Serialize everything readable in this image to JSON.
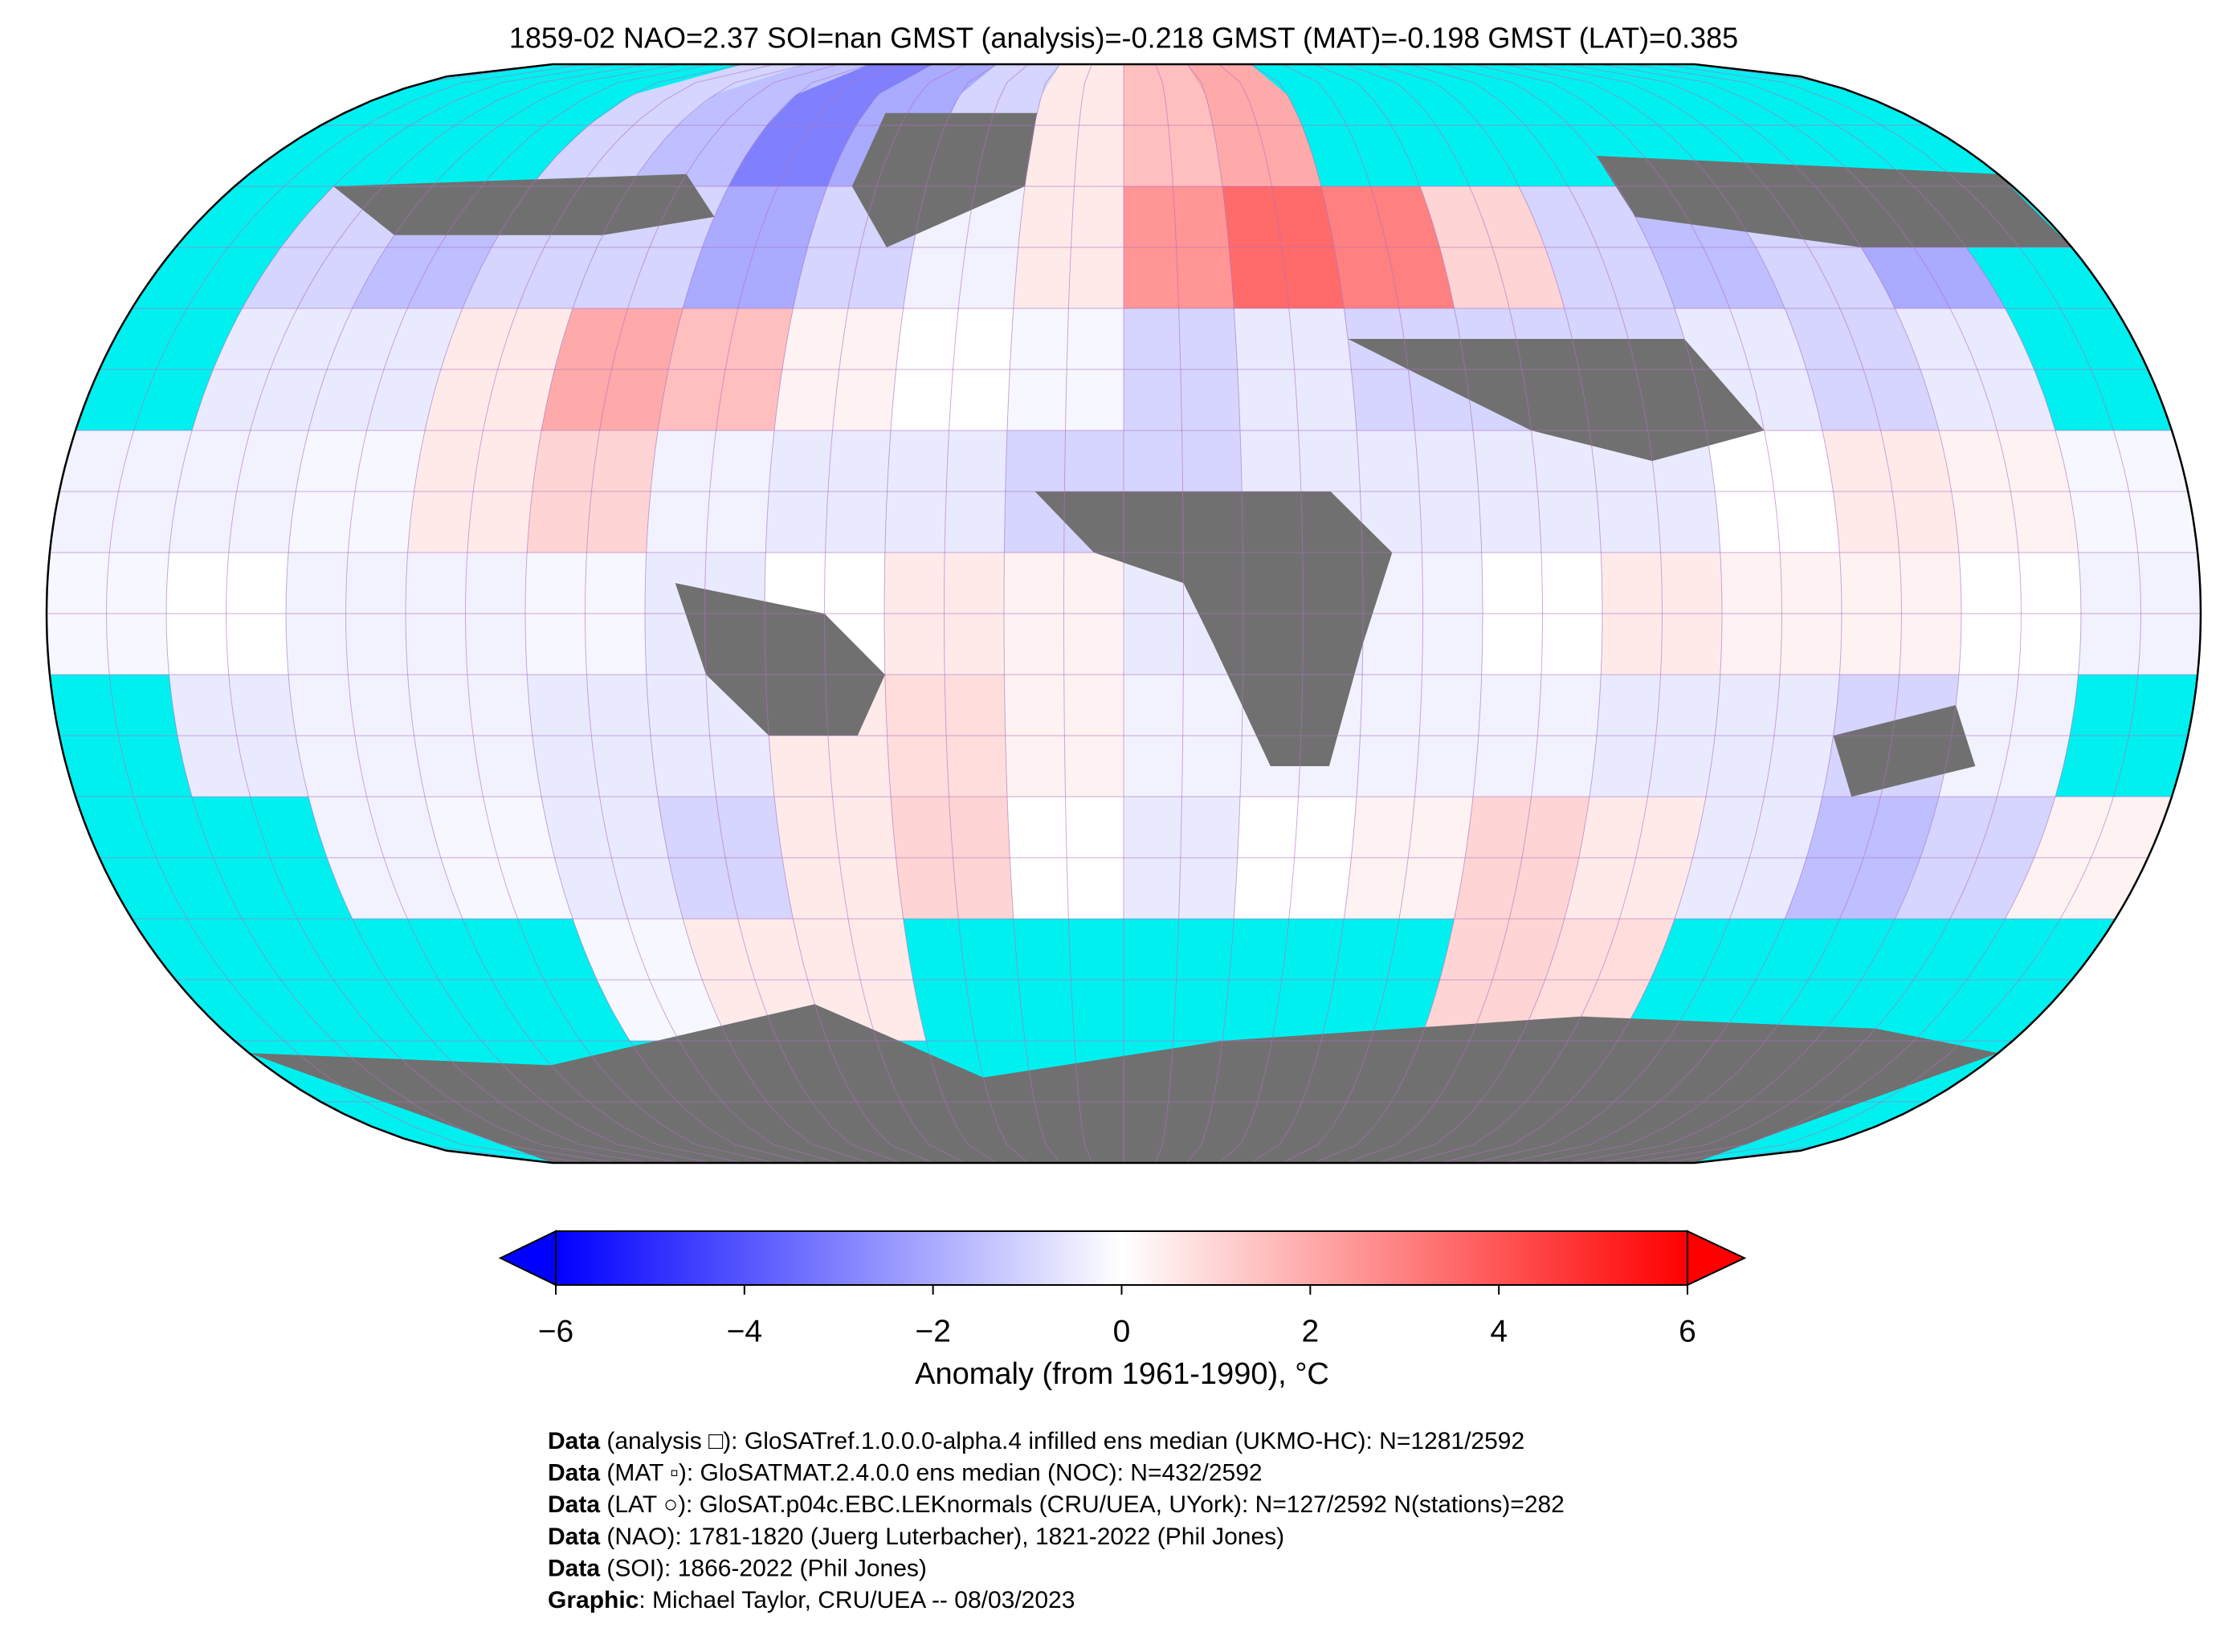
{
  "chart_data": {
    "type": "map",
    "title": "1859-02 NAO=2.37 SOI=nan GMST (analysis)=-0.218 GMST (MAT)=-0.198 GMST (LAT)=0.385",
    "colormap": [
      "#0000ff",
      "#ffffff",
      "#ff0000"
    ],
    "ocean_color": "#00f0f0",
    "land_color": "#707070",
    "clim": [
      -6,
      6
    ],
    "colorbar_ticks": [
      {
        "value": -6,
        "label": "−6"
      },
      {
        "value": -4,
        "label": "−4"
      },
      {
        "value": -2,
        "label": "−2"
      },
      0,
      2,
      4,
      6
    ],
    "colorbar_label": "Anomaly (from 1961-1990), °C",
    "cells": [
      [
        null,
        null,
        null,
        -1,
        -1.5,
        -3,
        -2,
        -1,
        0.5,
        1.5,
        2,
        null,
        null,
        null,
        null,
        null,
        null,
        null
      ],
      [
        null,
        -1,
        -1.5,
        -1,
        -1,
        -2,
        -1,
        -0.3,
        0.5,
        2.5,
        3.5,
        3,
        1,
        -1,
        -1.5,
        -1,
        -2,
        null
      ],
      [
        null,
        -0.5,
        -0.5,
        0.5,
        2,
        1.5,
        0.3,
        0,
        -0.2,
        -1,
        -0.5,
        -1,
        -1,
        -1,
        -0.5,
        -1,
        -0.5,
        null
      ],
      [
        -0.3,
        -0.3,
        -0.2,
        0.5,
        1,
        -0.3,
        -0.5,
        -0.5,
        -1,
        -1,
        -0.5,
        -0.5,
        -0.5,
        -0.5,
        0,
        0.5,
        0.3,
        -0.2
      ],
      [
        -0.2,
        0,
        -0.3,
        -0.3,
        -0.2,
        -0.5,
        0,
        0.5,
        0.3,
        -0.5,
        -0.5,
        -0.3,
        0,
        0.5,
        0.3,
        0.3,
        0,
        -0.3
      ],
      [
        null,
        -0.5,
        -0.3,
        -0.3,
        -0.5,
        -0.5,
        0.5,
        0.8,
        0.3,
        -0.3,
        -0.3,
        -0.3,
        -0.3,
        -0.5,
        -0.5,
        -1,
        -0.3,
        null
      ],
      [
        null,
        null,
        -0.3,
        -0.2,
        -0.5,
        -1,
        0.5,
        1,
        0,
        -0.5,
        0,
        0.3,
        1,
        0.5,
        -0.5,
        -1.5,
        -1,
        0.3
      ],
      [
        null,
        null,
        null,
        null,
        -0.2,
        0.5,
        0.5,
        null,
        null,
        null,
        null,
        null,
        1,
        0.8,
        null,
        null,
        null,
        null
      ],
      [
        null,
        null,
        null,
        null,
        null,
        null,
        null,
        null,
        null,
        null,
        null,
        null,
        null,
        null,
        null,
        null,
        null,
        null
      ]
    ],
    "footer": [
      {
        "label": "Data",
        "text": " (analysis □): GloSATref.1.0.0.0-alpha.4 infilled ens median (UKMO-HC): N=1281/2592"
      },
      {
        "label": "Data",
        "text": " (MAT ▫): GloSATMAT.2.4.0.0 ens median (NOC): N=432/2592"
      },
      {
        "label": "Data",
        "text": " (LAT ○): GloSAT.p04c.EBC.LEKnormals (CRU/UEA, UYork): N=127/2592 N(stations)=282"
      },
      {
        "label": "Data",
        "text": " (NAO): 1781-1820 (Juerg Luterbacher), 1821-2022 (Phil Jones)"
      },
      {
        "label": "Data",
        "text": " (SOI): 1866-2022 (Phil Jones)"
      },
      {
        "label": "Graphic",
        "text": ": Michael Taylor, CRU/UEA -- 08/03/2023"
      }
    ]
  }
}
